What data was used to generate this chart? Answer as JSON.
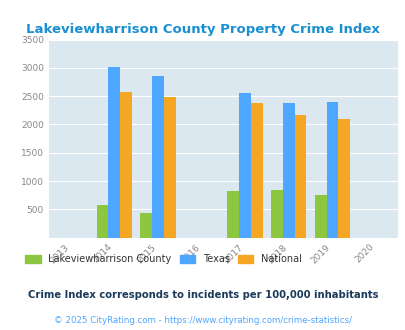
{
  "title": "Lakeviewharrison County Property Crime Index",
  "title_color": "#1a8fd1",
  "years_all": [
    2013,
    2014,
    2015,
    2016,
    2017,
    2018,
    2019,
    2020
  ],
  "data_years": [
    2014,
    2015,
    2017,
    2018,
    2019
  ],
  "lakeview": [
    580,
    440,
    820,
    840,
    760
  ],
  "texas": [
    3010,
    2850,
    2560,
    2380,
    2400
  ],
  "national": [
    2580,
    2490,
    2380,
    2160,
    2100
  ],
  "lakeview_color": "#8dc63f",
  "texas_color": "#4da6ff",
  "national_color": "#f5a623",
  "bg_color": "#dce8f0",
  "ylim": [
    0,
    3500
  ],
  "yticks": [
    0,
    500,
    1000,
    1500,
    2000,
    2500,
    3000,
    3500
  ],
  "xlim_min": 2012.5,
  "xlim_max": 2020.5,
  "bar_width": 0.27,
  "legend_labels": [
    "Lakeviewharrison County",
    "Texas",
    "National"
  ],
  "footnote1": "Crime Index corresponds to incidents per 100,000 inhabitants",
  "footnote2": "© 2025 CityRating.com - https://www.cityrating.com/crime-statistics/",
  "footnote1_color": "#1a3a5c",
  "footnote2_color": "#4da6ff",
  "grid_color": "#ffffff",
  "tick_label_color": "#888888"
}
